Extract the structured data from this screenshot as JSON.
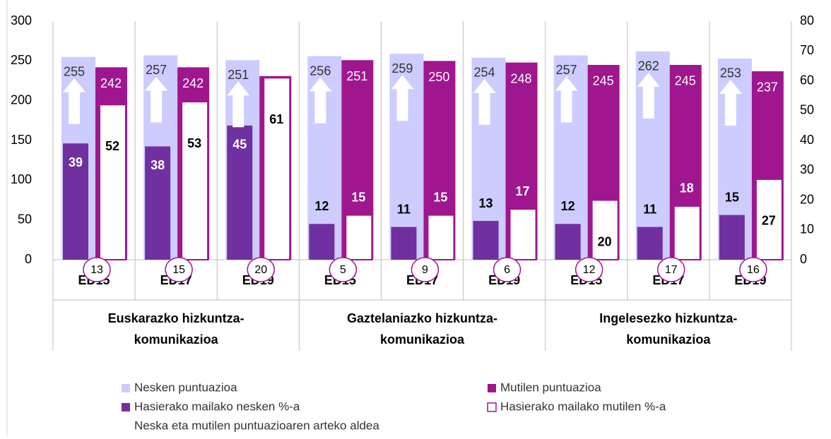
{
  "chart_data": {
    "type": "bar",
    "categories": [
      "ED15",
      "ED17",
      "ED19",
      "ED15",
      "ED17",
      "ED19",
      "ED15",
      "ED17",
      "ED19"
    ],
    "groups": [
      [
        "Euskarazko hizkuntza-",
        "komunikazioa"
      ],
      [
        "Gaztelaniazko hizkuntza-",
        "komunikazioa"
      ],
      [
        "Ingelesezko hizkuntza-",
        "komunikazioa"
      ]
    ],
    "series": [
      {
        "name": "Nesken puntuazioa",
        "color": "#ccccff",
        "values": [
          255,
          257,
          251,
          256,
          259,
          254,
          257,
          262,
          253
        ]
      },
      {
        "name": "Mutilen puntuazioa",
        "color": "#a0168f",
        "values": [
          242,
          242,
          231,
          251,
          250,
          248,
          245,
          245,
          237
        ]
      },
      {
        "name": "Hasierako mailako nesken %-a",
        "color": "#7030a0",
        "axis": "y2",
        "values": [
          39,
          38,
          45,
          12,
          11,
          13,
          12,
          11,
          15
        ]
      },
      {
        "name": "Hasierako mailako mutilen %-a",
        "color": "#ffffff",
        "axis": "y2",
        "values": [
          52,
          53,
          61,
          15,
          15,
          17,
          20,
          18,
          27
        ]
      },
      {
        "name": "Neska eta mutilen puntuazioaren arteko aldea",
        "color": "#a0168f",
        "values": [
          13,
          15,
          20,
          5,
          9,
          6,
          12,
          17,
          16
        ]
      }
    ],
    "ylim": [
      0,
      300
    ],
    "yticks": [
      0,
      50,
      100,
      150,
      200,
      250,
      300
    ],
    "y2lim": [
      0,
      80
    ],
    "y2ticks": [
      0,
      10,
      20,
      30,
      40,
      50,
      60,
      70,
      80
    ],
    "grid": false
  }
}
